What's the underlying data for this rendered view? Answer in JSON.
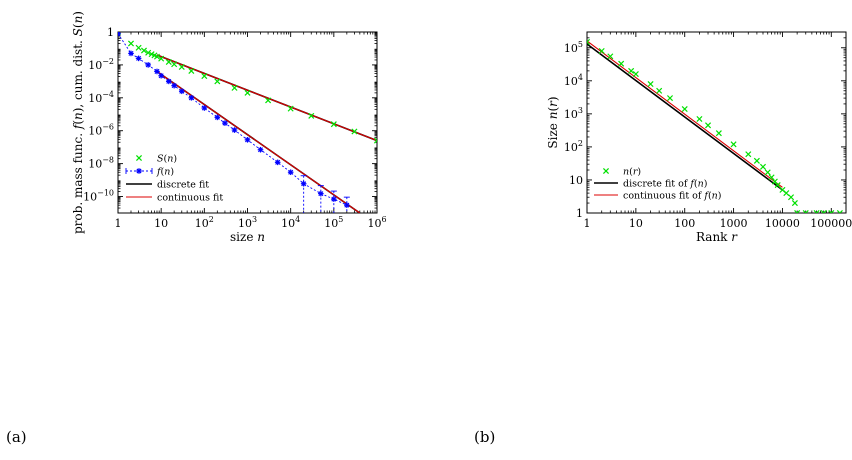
{
  "panel_labels": {
    "a": "(a)",
    "b": "(b)"
  },
  "chart_data": [
    {
      "type": "scatter",
      "panel": "(a)",
      "xscale": "log",
      "yscale": "log",
      "xlim": [
        1,
        1000000
      ],
      "ylim": [
        1e-11,
        1
      ],
      "xlabel": "size n",
      "ylabel": "prob. mass func. f(n), cum. dist. S(n)",
      "x_ticks": [
        {
          "v": 1,
          "b": "1",
          "e": ""
        },
        {
          "v": 10,
          "b": "10",
          "e": ""
        },
        {
          "v": 100,
          "b": "10",
          "e": "2"
        },
        {
          "v": 1000,
          "b": "10",
          "e": "3"
        },
        {
          "v": 10000,
          "b": "10",
          "e": "4"
        },
        {
          "v": 100000,
          "b": "10",
          "e": "5"
        },
        {
          "v": 1000000,
          "b": "10",
          "e": "6"
        }
      ],
      "y_ticks": [
        {
          "v": 1,
          "b": "1",
          "e": ""
        },
        {
          "v": 0.01,
          "b": "10",
          "e": "−2"
        },
        {
          "v": 0.0001,
          "b": "10",
          "e": "−4"
        },
        {
          "v": 1e-06,
          "b": "10",
          "e": "−6"
        },
        {
          "v": 1e-08,
          "b": "10",
          "e": "−8"
        },
        {
          "v": 1e-10,
          "b": "10",
          "e": "−10"
        }
      ],
      "grid": false,
      "legend_position": "bottom-left",
      "legend": [
        {
          "label": "S(n)",
          "style": "green-x"
        },
        {
          "label": "f(n)",
          "style": "blue-star-errorbar"
        },
        {
          "label": "discrete fit",
          "style": "black-line"
        },
        {
          "label": "continuous fit",
          "style": "red-line"
        }
      ],
      "series": [
        {
          "name": "S(n)",
          "marker": "x",
          "color": "#00e000",
          "points": [
            [
              1,
              1
            ],
            [
              2,
              0.2
            ],
            [
              3,
              0.11
            ],
            [
              4,
              0.075
            ],
            [
              5,
              0.055
            ],
            [
              6,
              0.045
            ],
            [
              7,
              0.038
            ],
            [
              8,
              0.032
            ],
            [
              10,
              0.024
            ],
            [
              15,
              0.015
            ],
            [
              20,
              0.011
            ],
            [
              30,
              0.0075
            ],
            [
              50,
              0.0043
            ],
            [
              100,
              0.0021
            ],
            [
              200,
              0.001
            ],
            [
              500,
              0.0004
            ],
            [
              1000,
              0.0002
            ],
            [
              3000,
              7e-05
            ],
            [
              10000,
              2.2e-05
            ],
            [
              30000,
              8e-06
            ],
            [
              100000,
              2.5e-06
            ],
            [
              300000,
              9e-07
            ],
            [
              1000000,
              2.5e-07
            ]
          ]
        },
        {
          "name": "f(n)",
          "marker": "star",
          "color": "#0000ff",
          "points": [
            [
              1,
              0.8
            ],
            [
              2,
              0.05
            ],
            [
              3,
              0.025
            ],
            [
              5,
              0.01
            ],
            [
              8,
              0.004
            ],
            [
              10,
              0.0022
            ],
            [
              15,
              0.001
            ],
            [
              20,
              0.00055
            ],
            [
              30,
              0.00025
            ],
            [
              50,
              0.0001
            ],
            [
              100,
              2.4e-05
            ],
            [
              200,
              6.5e-06
            ],
            [
              300,
              2.9e-06
            ],
            [
              500,
              1.1e-06
            ],
            [
              1000,
              2.8e-07
            ],
            [
              2000,
              7e-08
            ],
            [
              5000,
              1.2e-08
            ],
            [
              10000,
              3e-09
            ],
            [
              20000,
              6e-10
            ],
            [
              50000,
              1.5e-10
            ],
            [
              100000,
              7e-11
            ],
            [
              200000,
              3e-11
            ]
          ]
        },
        {
          "name": "discrete fit",
          "kind": "line",
          "color": "#000000",
          "points": [
            [
              8,
              0.04
            ],
            [
              1000000,
              2.5e-07
            ]
          ]
        },
        {
          "name": "discrete fit",
          "kind": "line",
          "color": "#000000",
          "points": [
            [
              8,
              0.004
            ],
            [
              400000,
              1e-11
            ]
          ]
        },
        {
          "name": "continuous fit",
          "kind": "line",
          "color": "#dd0000",
          "points": [
            [
              8,
              0.04
            ],
            [
              1000000,
              2.5e-07
            ]
          ]
        },
        {
          "name": "continuous fit",
          "kind": "line",
          "color": "#dd0000",
          "points": [
            [
              8,
              0.004
            ],
            [
              400000,
              1e-11
            ]
          ]
        }
      ]
    },
    {
      "type": "scatter",
      "panel": "(b)",
      "xscale": "log",
      "yscale": "log",
      "xlim": [
        1,
        200000
      ],
      "ylim": [
        1,
        300000
      ],
      "xlabel": "Rank r",
      "ylabel": "Size n(r)",
      "x_ticks": [
        {
          "v": 1,
          "b": "1",
          "e": ""
        },
        {
          "v": 10,
          "b": "10",
          "e": ""
        },
        {
          "v": 100,
          "b": "100",
          "e": ""
        },
        {
          "v": 1000,
          "b": "1000",
          "e": ""
        },
        {
          "v": 10000,
          "b": "10000",
          "e": ""
        },
        {
          "v": 100000,
          "b": "100000",
          "e": ""
        }
      ],
      "y_ticks": [
        {
          "v": 1,
          "b": "1",
          "e": ""
        },
        {
          "v": 10,
          "b": "10",
          "e": ""
        },
        {
          "v": 100,
          "b": "10",
          "e": "2"
        },
        {
          "v": 1000,
          "b": "10",
          "e": "3"
        },
        {
          "v": 10000,
          "b": "10",
          "e": "4"
        },
        {
          "v": 100000,
          "b": "10",
          "e": "5"
        }
      ],
      "grid": false,
      "legend_position": "bottom-left",
      "legend": [
        {
          "label": "n(r)",
          "style": "green-x"
        },
        {
          "label": "discrete fit of f(n)",
          "style": "black-line"
        },
        {
          "label": "continuous fit of f(n)",
          "style": "red-line"
        }
      ],
      "series": [
        {
          "name": "n(r)",
          "marker": "x",
          "color": "#00e000",
          "points": [
            [
              1,
              150000
            ],
            [
              2,
              80000
            ],
            [
              3,
              55000
            ],
            [
              5,
              33000
            ],
            [
              8,
              20000
            ],
            [
              10,
              16000
            ],
            [
              20,
              8000
            ],
            [
              30,
              5000
            ],
            [
              50,
              3000
            ],
            [
              100,
              1400
            ],
            [
              200,
              700
            ],
            [
              300,
              450
            ],
            [
              500,
              260
            ],
            [
              1000,
              120
            ],
            [
              2000,
              60
            ],
            [
              3000,
              38
            ],
            [
              4000,
              25
            ],
            [
              5000,
              17
            ],
            [
              6000,
              12
            ],
            [
              7000,
              9
            ],
            [
              8000,
              7
            ],
            [
              10000,
              5
            ],
            [
              12000,
              4
            ],
            [
              15000,
              3
            ],
            [
              18000,
              2
            ],
            [
              20000,
              1
            ],
            [
              30000,
              1
            ],
            [
              50000,
              1
            ],
            [
              70000,
              1
            ],
            [
              100000,
              1
            ],
            [
              150000,
              1
            ]
          ]
        },
        {
          "name": "discrete fit of f(n)",
          "kind": "line",
          "color": "#000000",
          "points": [
            [
              1,
              130000
            ],
            [
              10000,
              5
            ]
          ]
        },
        {
          "name": "continuous fit of f(n)",
          "kind": "line",
          "color": "#dd0000",
          "points": [
            [
              1,
              160000
            ],
            [
              10000,
              6
            ]
          ]
        }
      ]
    }
  ]
}
